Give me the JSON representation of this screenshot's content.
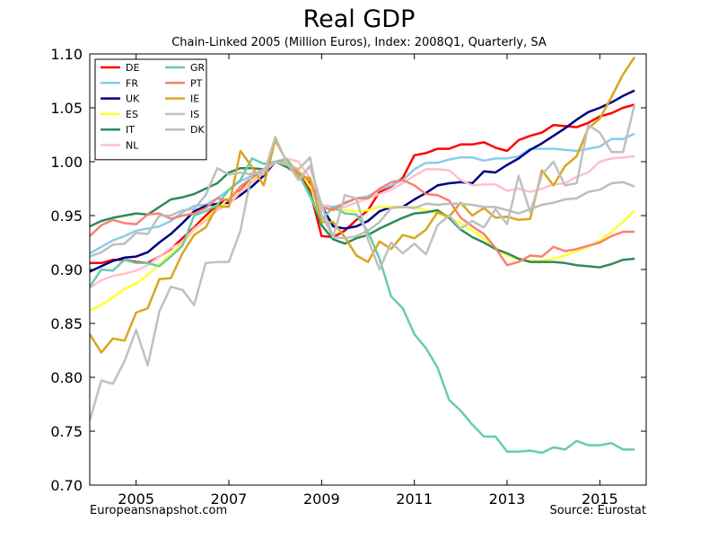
{
  "chart_data": {
    "type": "line",
    "title": "Real GDP",
    "subtitle": "Chain-Linked 2005 (Million Euros), Index: 2008Q1, Quarterly, SA",
    "xlabel": "",
    "ylabel": "",
    "xlim": [
      2004.0,
      2016.0
    ],
    "ylim": [
      0.7,
      1.1
    ],
    "x_ticks": [
      2005,
      2007,
      2009,
      2011,
      2013,
      2015
    ],
    "x_tick_labels": [
      "2005",
      "2007",
      "2009",
      "2011",
      "2013",
      "2015"
    ],
    "y_ticks": [
      0.7,
      0.75,
      0.8,
      0.85,
      0.9,
      0.95,
      1.0,
      1.05,
      1.1
    ],
    "y_tick_labels": [
      "0.70",
      "0.75",
      "0.80",
      "0.85",
      "0.90",
      "0.95",
      "1.00",
      "1.05",
      "1.10"
    ],
    "grid": false,
    "legend_position": "top-left",
    "legend_columns": 2,
    "x": [
      2004.0,
      2004.25,
      2004.5,
      2004.75,
      2005.0,
      2005.25,
      2005.5,
      2005.75,
      2006.0,
      2006.25,
      2006.5,
      2006.75,
      2007.0,
      2007.25,
      2007.5,
      2007.75,
      2008.0,
      2008.25,
      2008.5,
      2008.75,
      2009.0,
      2009.25,
      2009.5,
      2009.75,
      2010.0,
      2010.25,
      2010.5,
      2010.75,
      2011.0,
      2011.25,
      2011.5,
      2011.75,
      2012.0,
      2012.25,
      2012.5,
      2012.75,
      2013.0,
      2013.25,
      2013.5,
      2013.75,
      2014.0,
      2014.25,
      2014.5,
      2014.75,
      2015.0,
      2015.25,
      2015.5,
      2015.75
    ],
    "series": [
      {
        "name": "DE",
        "color": "#ff0000",
        "values": [
          0.906,
          0.906,
          0.909,
          0.909,
          0.907,
          0.906,
          0.912,
          0.919,
          0.929,
          0.939,
          0.95,
          0.96,
          0.966,
          0.973,
          0.985,
          0.992,
          1.0,
          0.997,
          0.99,
          0.973,
          0.931,
          0.93,
          0.936,
          0.946,
          0.955,
          0.972,
          0.977,
          0.985,
          1.006,
          1.008,
          1.012,
          1.012,
          1.016,
          1.016,
          1.018,
          1.013,
          1.01,
          1.02,
          1.024,
          1.027,
          1.034,
          1.033,
          1.032,
          1.036,
          1.042,
          1.045,
          1.05,
          1.053
        ]
      },
      {
        "name": "FR",
        "color": "#87ceeb",
        "values": [
          0.915,
          0.921,
          0.927,
          0.931,
          0.936,
          0.938,
          0.94,
          0.945,
          0.953,
          0.959,
          0.96,
          0.966,
          0.974,
          0.982,
          0.987,
          0.992,
          1.0,
          0.996,
          0.993,
          0.978,
          0.96,
          0.958,
          0.961,
          0.966,
          0.968,
          0.974,
          0.978,
          0.983,
          0.993,
          0.999,
          0.999,
          1.002,
          1.004,
          1.004,
          1.001,
          1.003,
          1.003,
          1.005,
          1.012,
          1.012,
          1.012,
          1.011,
          1.01,
          1.012,
          1.014,
          1.021,
          1.021,
          1.026
        ]
      },
      {
        "name": "UK",
        "color": "#000080",
        "values": [
          0.898,
          0.903,
          0.908,
          0.911,
          0.912,
          0.916,
          0.925,
          0.933,
          0.943,
          0.954,
          0.959,
          0.961,
          0.962,
          0.969,
          0.977,
          0.987,
          1.0,
          0.997,
          0.992,
          0.98,
          0.959,
          0.94,
          0.938,
          0.94,
          0.945,
          0.954,
          0.958,
          0.958,
          0.965,
          0.971,
          0.978,
          0.98,
          0.981,
          0.98,
          0.991,
          0.99,
          0.997,
          1.003,
          1.011,
          1.017,
          1.024,
          1.031,
          1.039,
          1.046,
          1.05,
          1.055,
          1.061,
          1.066
        ]
      },
      {
        "name": "ES",
        "color": "#ffff33",
        "values": [
          0.862,
          0.867,
          0.874,
          0.882,
          0.887,
          0.895,
          0.905,
          0.914,
          0.924,
          0.937,
          0.947,
          0.956,
          0.966,
          0.972,
          0.983,
          0.992,
          1.0,
          0.999,
          0.993,
          0.977,
          0.961,
          0.955,
          0.955,
          0.954,
          0.955,
          0.958,
          0.958,
          0.958,
          0.958,
          0.955,
          0.952,
          0.948,
          0.943,
          0.936,
          0.929,
          0.92,
          0.913,
          0.909,
          0.908,
          0.908,
          0.91,
          0.913,
          0.917,
          0.921,
          0.927,
          0.935,
          0.944,
          0.955
        ]
      },
      {
        "name": "IT",
        "color": "#2e8b57",
        "values": [
          0.94,
          0.945,
          0.948,
          0.95,
          0.952,
          0.951,
          0.958,
          0.965,
          0.967,
          0.97,
          0.975,
          0.98,
          0.99,
          0.994,
          0.994,
          0.993,
          1.0,
          0.995,
          0.988,
          0.971,
          0.941,
          0.928,
          0.924,
          0.929,
          0.932,
          0.938,
          0.943,
          0.948,
          0.952,
          0.953,
          0.955,
          0.948,
          0.937,
          0.93,
          0.925,
          0.919,
          0.915,
          0.91,
          0.907,
          0.907,
          0.907,
          0.906,
          0.904,
          0.903,
          0.902,
          0.905,
          0.909,
          0.91
        ]
      },
      {
        "name": "NL",
        "color": "#ffc0cb",
        "values": [
          0.883,
          0.89,
          0.894,
          0.896,
          0.899,
          0.904,
          0.912,
          0.92,
          0.925,
          0.938,
          0.945,
          0.955,
          0.96,
          0.972,
          0.981,
          0.99,
          1.0,
          1.003,
          1.0,
          0.985,
          0.96,
          0.957,
          0.958,
          0.962,
          0.966,
          0.97,
          0.974,
          0.98,
          0.987,
          0.993,
          0.993,
          0.992,
          0.983,
          0.978,
          0.979,
          0.979,
          0.973,
          0.975,
          0.972,
          0.975,
          0.979,
          0.98,
          0.986,
          0.99,
          1.0,
          1.003,
          1.004,
          1.005
        ]
      },
      {
        "name": "GR",
        "color": "#66cdaa",
        "values": [
          0.884,
          0.9,
          0.899,
          0.909,
          0.906,
          0.906,
          0.903,
          0.912,
          0.922,
          0.95,
          0.954,
          0.96,
          0.974,
          0.983,
          1.003,
          0.998,
          1.0,
          1.002,
          0.989,
          0.968,
          0.946,
          0.958,
          0.952,
          0.951,
          0.935,
          0.91,
          0.875,
          0.864,
          0.84,
          0.827,
          0.809,
          0.779,
          0.769,
          0.756,
          0.745,
          0.745,
          0.731,
          0.731,
          0.732,
          0.73,
          0.735,
          0.733,
          0.741,
          0.737,
          0.737,
          0.739,
          0.733,
          0.733
        ]
      },
      {
        "name": "PT",
        "color": "#fa8072",
        "values": [
          0.931,
          0.941,
          0.946,
          0.943,
          0.942,
          0.951,
          0.952,
          0.947,
          0.95,
          0.952,
          0.957,
          0.966,
          0.964,
          0.977,
          0.985,
          0.993,
          1.0,
          0.998,
          0.99,
          0.982,
          0.958,
          0.955,
          0.962,
          0.966,
          0.966,
          0.975,
          0.981,
          0.983,
          0.978,
          0.97,
          0.969,
          0.964,
          0.948,
          0.94,
          0.933,
          0.92,
          0.904,
          0.907,
          0.913,
          0.912,
          0.921,
          0.917,
          0.919,
          0.922,
          0.925,
          0.931,
          0.935,
          0.935
        ]
      },
      {
        "name": "IE",
        "color": "#daa520",
        "values": [
          0.84,
          0.823,
          0.836,
          0.834,
          0.86,
          0.864,
          0.891,
          0.892,
          0.915,
          0.932,
          0.939,
          0.959,
          0.958,
          1.01,
          0.995,
          0.978,
          1.02,
          1.0,
          0.986,
          0.985,
          0.944,
          0.944,
          0.93,
          0.913,
          0.907,
          0.926,
          0.919,
          0.932,
          0.929,
          0.937,
          0.953,
          0.949,
          0.962,
          0.95,
          0.957,
          0.948,
          0.949,
          0.946,
          0.947,
          0.992,
          0.978,
          0.996,
          1.005,
          1.031,
          1.04,
          1.06,
          1.081,
          1.097
        ]
      },
      {
        "name": "IS",
        "color": "#c0c0c0",
        "values": [
          0.76,
          0.797,
          0.794,
          0.815,
          0.844,
          0.811,
          0.861,
          0.884,
          0.881,
          0.867,
          0.906,
          0.907,
          0.907,
          0.936,
          0.99,
          0.988,
          1.023,
          0.999,
          0.983,
          0.996,
          0.96,
          0.93,
          0.969,
          0.966,
          0.928,
          0.9,
          0.925,
          0.915,
          0.924,
          0.914,
          0.941,
          0.95,
          0.938,
          0.945,
          0.939,
          0.956,
          0.942,
          0.987,
          0.953,
          0.988,
          1.0,
          0.978,
          0.98,
          1.034,
          1.027,
          1.009,
          1.009,
          1.053
        ]
      },
      {
        "name": "DK",
        "color": "#bebebe",
        "values": [
          0.912,
          0.916,
          0.923,
          0.924,
          0.934,
          0.933,
          0.95,
          0.95,
          0.955,
          0.956,
          0.969,
          0.994,
          0.988,
          0.99,
          0.988,
          0.993,
          1.0,
          0.997,
          0.993,
          1.004,
          0.951,
          0.93,
          0.929,
          0.931,
          0.936,
          0.944,
          0.957,
          0.958,
          0.957,
          0.961,
          0.96,
          0.961,
          0.961,
          0.96,
          0.958,
          0.958,
          0.955,
          0.952,
          0.956,
          0.96,
          0.962,
          0.965,
          0.966,
          0.972,
          0.974,
          0.98,
          0.981,
          0.977
        ]
      }
    ]
  },
  "footer": {
    "left": "Europeansnapshot.com",
    "right": "Source: Eurostat"
  }
}
